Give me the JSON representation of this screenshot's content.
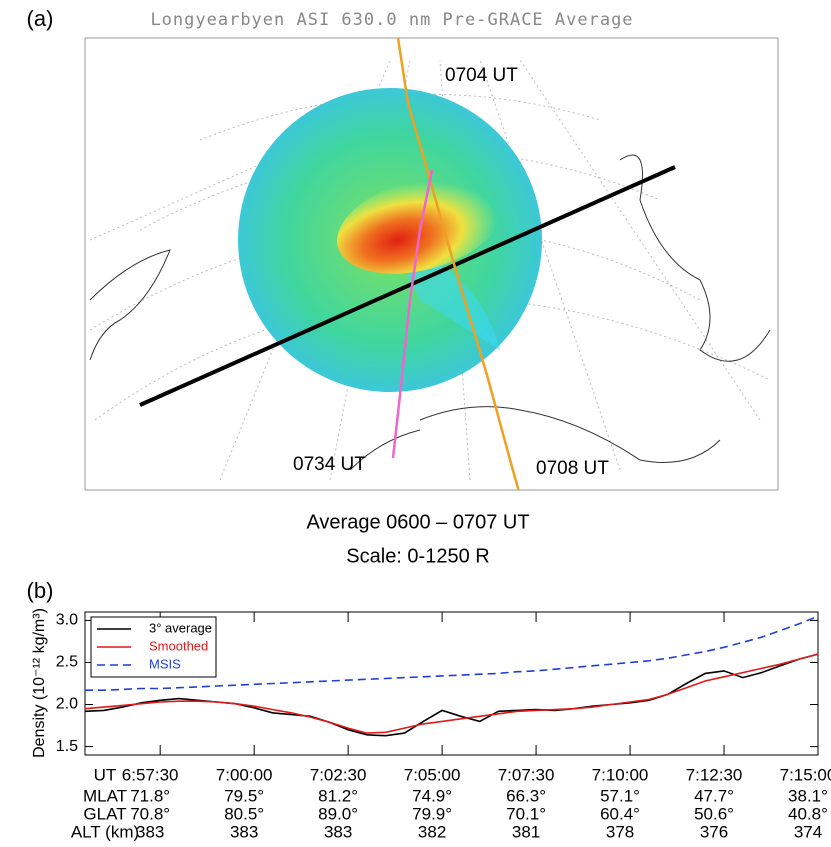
{
  "panel_a": {
    "label": "(a)",
    "title": "Longyearbyen ASI 630.0 nm Pre-GRACE Average",
    "annotations": [
      "0704 UT",
      "0734 UT",
      "0708 UT"
    ],
    "caption": [
      "Average 0600 – 0707 UT",
      "Scale:  0-1250 R"
    ]
  },
  "chart_data": {
    "type": "line",
    "panel_label": "(b)",
    "y_label": "Density (10⁻¹² kg/m³)",
    "x_label": "UT",
    "x": [
      "6:55:30",
      "6:56:00",
      "6:56:30",
      "6:57:00",
      "6:57:30",
      "6:58:00",
      "6:58:30",
      "6:59:00",
      "6:59:30",
      "7:00:00",
      "7:00:30",
      "7:01:00",
      "7:01:30",
      "7:02:00",
      "7:02:30",
      "7:03:00",
      "7:03:30",
      "7:04:00",
      "7:04:30",
      "7:05:00",
      "7:05:30",
      "7:06:00",
      "7:06:30",
      "7:07:00",
      "7:07:30",
      "7:08:00",
      "7:08:30",
      "7:09:00",
      "7:09:30",
      "7:10:00",
      "7:10:30",
      "7:11:00",
      "7:11:30",
      "7:12:00",
      "7:12:30",
      "7:13:00",
      "7:13:30",
      "7:14:00",
      "7:14:30",
      "7:15:00"
    ],
    "series": [
      {
        "name": "3° average",
        "color": "#000000",
        "dash": false,
        "values": [
          1.92,
          1.93,
          1.97,
          2.02,
          2.05,
          2.07,
          2.05,
          2.03,
          2.01,
          1.96,
          1.9,
          1.88,
          1.86,
          1.79,
          1.7,
          1.64,
          1.63,
          1.66,
          1.8,
          1.93,
          1.86,
          1.8,
          1.92,
          1.93,
          1.94,
          1.93,
          1.95,
          1.98,
          2.0,
          2.02,
          2.05,
          2.12,
          2.25,
          2.37,
          2.4,
          2.32,
          2.38,
          2.46,
          2.54,
          2.6
        ]
      },
      {
        "name": "Smoothed",
        "color": "#e0191b",
        "dash": false,
        "values": [
          1.95,
          1.97,
          1.99,
          2.01,
          2.03,
          2.04,
          2.04,
          2.03,
          2.01,
          1.98,
          1.94,
          1.9,
          1.85,
          1.79,
          1.72,
          1.66,
          1.67,
          1.72,
          1.77,
          1.8,
          1.83,
          1.86,
          1.89,
          1.92,
          1.93,
          1.94,
          1.95,
          1.97,
          2.0,
          2.03,
          2.06,
          2.12,
          2.2,
          2.28,
          2.33,
          2.38,
          2.43,
          2.48,
          2.54,
          2.6
        ]
      },
      {
        "name": "MSIS",
        "color": "#1f3fd8",
        "dash": true,
        "values": [
          2.17,
          2.17,
          2.18,
          2.19,
          2.19,
          2.2,
          2.21,
          2.22,
          2.23,
          2.24,
          2.25,
          2.26,
          2.27,
          2.28,
          2.29,
          2.3,
          2.31,
          2.32,
          2.33,
          2.34,
          2.35,
          2.36,
          2.37,
          2.39,
          2.4,
          2.42,
          2.44,
          2.46,
          2.48,
          2.5,
          2.52,
          2.55,
          2.59,
          2.63,
          2.68,
          2.74,
          2.8,
          2.88,
          2.96,
          3.05
        ]
      }
    ],
    "xlim": [
      "6:55:30",
      "7:15:00"
    ],
    "xticks": [
      "6:57:30",
      "7:00:00",
      "7:02:30",
      "7:05:00",
      "7:07:30",
      "7:10:00",
      "7:12:30",
      "7:15:00"
    ],
    "ylim": [
      1.4,
      3.1
    ],
    "yticks": [
      1.5,
      {
        "value": 2,
        "label": "2.0"
      },
      2.5,
      {
        "value": 3,
        "label": "3.0"
      }
    ],
    "legend": "top-left",
    "rows": [
      {
        "label": "MLAT",
        "values": [
          "71.8°",
          "79.5°",
          "81.2°",
          "74.9°",
          "66.3°",
          "57.1°",
          "47.7°",
          "38.1°"
        ]
      },
      {
        "label": "GLAT",
        "values": [
          "70.8°",
          "80.5°",
          "89.0°",
          "79.9°",
          "70.1°",
          "60.4°",
          "50.6°",
          "40.8°"
        ]
      },
      {
        "label": "ALT (km)",
        "values": [
          383,
          383,
          383,
          382,
          381,
          378,
          376,
          374
        ]
      }
    ]
  }
}
